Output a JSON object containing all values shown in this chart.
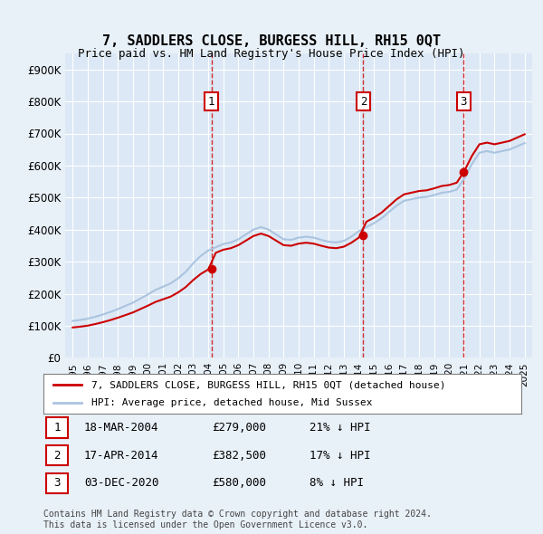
{
  "title": "7, SADDLERS CLOSE, BURGESS HILL, RH15 0QT",
  "subtitle": "Price paid vs. HM Land Registry's House Price Index (HPI)",
  "sale_prices": [
    279000,
    382500,
    580000
  ],
  "sale_labels": [
    "1",
    "2",
    "3"
  ],
  "sale_label_dates_str": [
    "18-MAR-2004",
    "17-APR-2014",
    "03-DEC-2020"
  ],
  "sale_pct": [
    "21%",
    "17%",
    "8%"
  ],
  "hpi_line_color": "#aac4e0",
  "price_line_color": "#cc0000",
  "marker_color": "#cc0000",
  "dashed_line_color": "#cc0000",
  "background_color": "#e8f0f8",
  "plot_bg_color": "#dce8f5",
  "legend_label_price": "7, SADDLERS CLOSE, BURGESS HILL, RH15 0QT (detached house)",
  "legend_label_hpi": "HPI: Average price, detached house, Mid Sussex",
  "footer": "Contains HM Land Registry data © Crown copyright and database right 2024.\nThis data is licensed under the Open Government Licence v3.0.",
  "ylim": [
    0,
    950000
  ],
  "ytick_vals": [
    0,
    100000,
    200000,
    300000,
    400000,
    500000,
    600000,
    700000,
    800000,
    900000
  ],
  "ytick_labels": [
    "£0",
    "£100K",
    "£200K",
    "£300K",
    "£400K",
    "£500K",
    "£600K",
    "£700K",
    "£800K",
    "£900K"
  ],
  "xtick_years": [
    1995,
    1996,
    1997,
    1998,
    1999,
    2000,
    2001,
    2002,
    2003,
    2004,
    2005,
    2006,
    2007,
    2008,
    2009,
    2010,
    2011,
    2012,
    2013,
    2014,
    2015,
    2016,
    2017,
    2018,
    2019,
    2020,
    2021,
    2022,
    2023,
    2024,
    2025
  ]
}
